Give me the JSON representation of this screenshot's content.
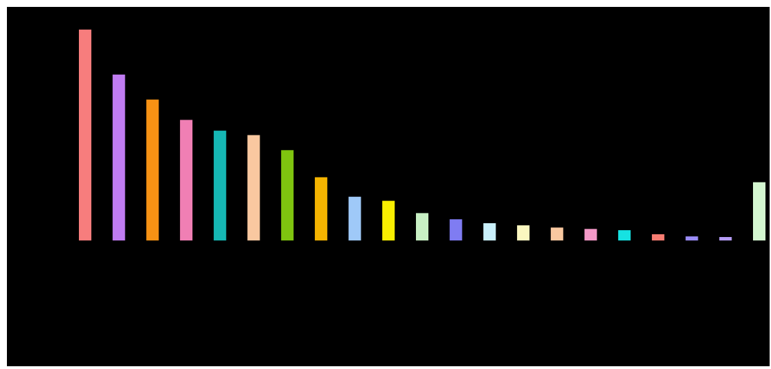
{
  "chart_data": {
    "type": "bar",
    "ylabel_lines": [
      "",
      ""
    ],
    "categories": [
      "",
      "",
      "",
      "",
      "",
      "",
      "",
      "",
      "",
      "",
      "",
      "",
      "",
      "",
      "",
      "",
      "",
      "",
      "",
      "",
      ""
    ],
    "values": [
      1904.8,
      1498.8,
      1272.8,
      1089,
      991.8,
      951.8,
      815.9,
      571,
      395.1,
      358,
      247,
      191.9,
      155.8,
      137,
      117,
      104,
      93,
      56.2,
      37,
      31.5,
      526
    ],
    "value_labels": [
      "",
      "",
      "",
      "",
      "",
      "",
      "",
      "",
      "",
      "",
      "",
      "",
      "",
      "",
      "",
      "",
      "",
      "",
      "",
      "",
      ""
    ],
    "colors": [
      "#f77d7d",
      "#c07cf2",
      "#f79214",
      "#f07fb4",
      "#16b8b5",
      "#f9c8a0",
      "#7fc40f",
      "#f5b400",
      "#9fc9f8",
      "#f9ef00",
      "#c8f0c4",
      "#7f7cf2",
      "#c9f0fb",
      "#fbf7c0",
      "#f9c8a0",
      "#f499c8",
      "#16e2e2",
      "#f77d72",
      "#9a8cf7",
      "#b59cf6",
      "#d4f7d0"
    ],
    "ylim": [
      0,
      1960
    ],
    "grid": false,
    "legend": "none"
  }
}
